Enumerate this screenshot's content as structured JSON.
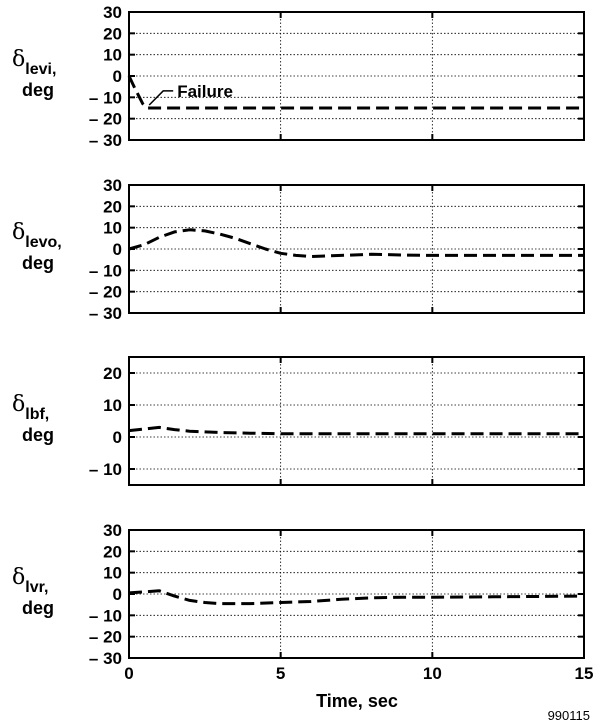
{
  "figure_number": "990115",
  "chart_data": [
    {
      "type": "line",
      "ylabel": {
        "symbol": "δ",
        "subscript": "levi",
        "unit": "deg"
      },
      "ylim": [
        -30,
        30
      ],
      "yticks": [
        -30,
        -20,
        -10,
        0,
        10,
        20,
        30
      ],
      "ytick_labels": [
        "– 30",
        "– 20",
        "– 10",
        "0",
        "10",
        "20",
        "30"
      ],
      "xlim": [
        0,
        15
      ],
      "grid": true,
      "annotation": {
        "text": "Failure",
        "x": 0.6,
        "y": -15
      },
      "series": [
        {
          "x": [
            0,
            0.2,
            0.45,
            0.6,
            0.8,
            2,
            5,
            10,
            15
          ],
          "values": [
            0,
            -6,
            -13,
            -15,
            -15,
            -15,
            -15,
            -15,
            -15
          ]
        }
      ]
    },
    {
      "type": "line",
      "ylabel": {
        "symbol": "δ",
        "subscript": "levo",
        "unit": "deg"
      },
      "ylim": [
        -30,
        30
      ],
      "yticks": [
        -30,
        -20,
        -10,
        0,
        10,
        20,
        30
      ],
      "ytick_labels": [
        "– 30",
        "– 20",
        "– 10",
        "0",
        "10",
        "20",
        "30"
      ],
      "xlim": [
        0,
        15
      ],
      "grid": true,
      "series": [
        {
          "x": [
            0,
            0.5,
            1,
            1.5,
            2,
            2.5,
            3,
            3.5,
            4,
            4.5,
            5,
            5.5,
            6,
            7,
            8,
            9,
            10,
            12,
            15
          ],
          "values": [
            0,
            2,
            5.5,
            8,
            9,
            8.5,
            7,
            5,
            2.5,
            0,
            -2,
            -3,
            -3.5,
            -3,
            -2.5,
            -2.8,
            -3,
            -3,
            -3
          ]
        }
      ]
    },
    {
      "type": "line",
      "ylabel": {
        "symbol": "δ",
        "subscript": "lbf",
        "unit": "deg"
      },
      "ylim": [
        -15,
        25
      ],
      "yticks": [
        -10,
        0,
        10,
        20
      ],
      "ytick_labels": [
        "– 10",
        "0",
        "10",
        "20"
      ],
      "xlim": [
        0,
        15
      ],
      "grid": true,
      "series": [
        {
          "x": [
            0,
            0.5,
            1,
            1.5,
            2,
            3,
            4,
            5,
            6,
            8,
            10,
            12,
            15
          ],
          "values": [
            2,
            2.5,
            3,
            2.3,
            1.8,
            1.4,
            1.2,
            1,
            1,
            1,
            1,
            1,
            1
          ]
        }
      ]
    },
    {
      "type": "line",
      "ylabel": {
        "symbol": "δ",
        "subscript": "lvr",
        "unit": "deg"
      },
      "ylim": [
        -30,
        30
      ],
      "yticks": [
        -30,
        -20,
        -10,
        0,
        10,
        20,
        30
      ],
      "ytick_labels": [
        "– 30",
        "– 20",
        "– 10",
        "0",
        "10",
        "20",
        "30"
      ],
      "xlim": [
        0,
        15
      ],
      "xticks": [
        0,
        5,
        10,
        15
      ],
      "xtick_labels": [
        "0",
        "5",
        "10",
        "15"
      ],
      "xlabel": "Time, sec",
      "grid": true,
      "series": [
        {
          "x": [
            0,
            0.5,
            1,
            1.5,
            2,
            2.5,
            3,
            4,
            5,
            6,
            7,
            8,
            9,
            10,
            12,
            15
          ],
          "values": [
            0.5,
            1,
            1.5,
            -1,
            -3,
            -4,
            -4.5,
            -4.5,
            -4,
            -3.5,
            -2.5,
            -1.8,
            -1.5,
            -1.5,
            -1.3,
            -1
          ]
        }
      ]
    }
  ]
}
